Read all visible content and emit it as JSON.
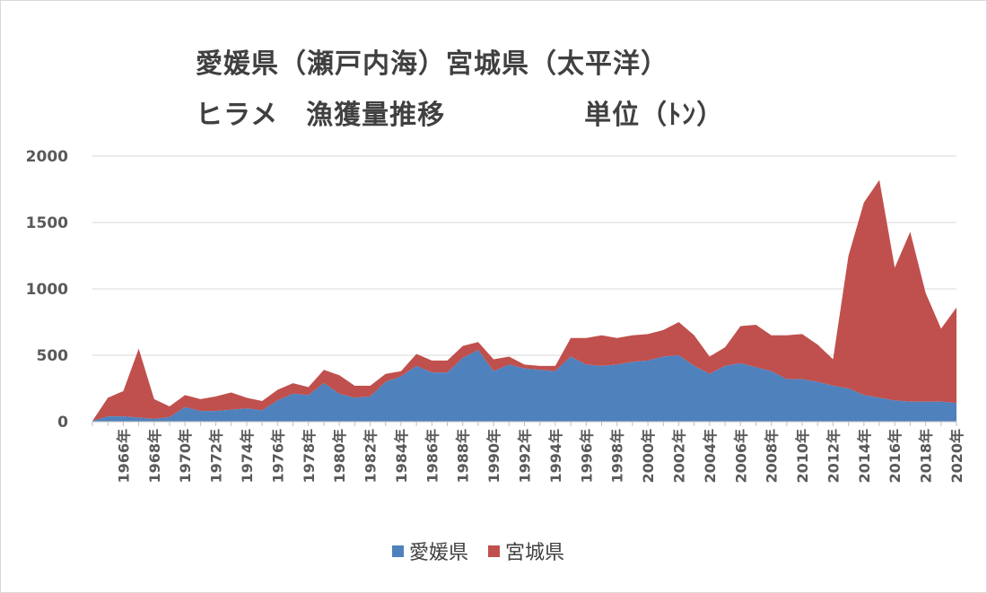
{
  "chart_data": {
    "type": "area",
    "stacked": true,
    "title_line1": "愛媛県（瀬戸内海）宮城県（太平洋）",
    "title_line2": "ヒラメ　漁獲量推移　　　　　単位（ﾄﾝ）",
    "ylim": [
      0,
      2000
    ],
    "yticks": [
      0,
      500,
      1000,
      1500,
      2000
    ],
    "grid": true,
    "legend_position": "bottom",
    "x_labels": [
      "1966年",
      "1968年",
      "1970年",
      "1972年",
      "1974年",
      "1976年",
      "1978年",
      "1980年",
      "1982年",
      "1984年",
      "1986年",
      "1988年",
      "1990年",
      "1992年",
      "1994年",
      "1996年",
      "1998年",
      "2000年",
      "2002年",
      "2004年",
      "2006年",
      "2008年",
      "2010年",
      "2012年",
      "2014年",
      "2016年",
      "2018年",
      "2020年"
    ],
    "x": [
      1964,
      1965,
      1966,
      1967,
      1968,
      1969,
      1970,
      1971,
      1972,
      1973,
      1974,
      1975,
      1976,
      1977,
      1978,
      1979,
      1980,
      1981,
      1982,
      1983,
      1984,
      1985,
      1986,
      1987,
      1988,
      1989,
      1990,
      1991,
      1992,
      1993,
      1994,
      1995,
      1996,
      1997,
      1998,
      1999,
      2000,
      2001,
      2002,
      2003,
      2004,
      2005,
      2006,
      2007,
      2008,
      2009,
      2010,
      2011,
      2012,
      2013,
      2014,
      2015,
      2016,
      2017,
      2018,
      2019,
      2020
    ],
    "series": [
      {
        "name": "愛媛県",
        "color": "#4f81bd",
        "values": [
          5,
          40,
          40,
          30,
          20,
          35,
          110,
          80,
          80,
          90,
          100,
          85,
          160,
          210,
          200,
          290,
          210,
          180,
          190,
          300,
          340,
          420,
          370,
          370,
          480,
          540,
          380,
          430,
          400,
          390,
          380,
          490,
          430,
          420,
          430,
          450,
          460,
          490,
          500,
          420,
          360,
          420,
          440,
          410,
          380,
          320,
          320,
          300,
          270,
          250,
          200,
          180,
          160,
          150,
          150,
          150,
          140
        ]
      },
      {
        "name": "宮城県",
        "color": "#c0504d",
        "values": [
          0,
          140,
          190,
          520,
          150,
          80,
          90,
          90,
          110,
          130,
          80,
          70,
          80,
          80,
          60,
          100,
          140,
          90,
          80,
          60,
          40,
          90,
          90,
          90,
          90,
          60,
          90,
          60,
          30,
          30,
          40,
          140,
          200,
          230,
          200,
          200,
          200,
          200,
          250,
          230,
          130,
          140,
          280,
          320,
          270,
          330,
          340,
          280,
          200,
          1000,
          1450,
          1640,
          1000,
          1280,
          820,
          550,
          720
        ]
      }
    ]
  }
}
